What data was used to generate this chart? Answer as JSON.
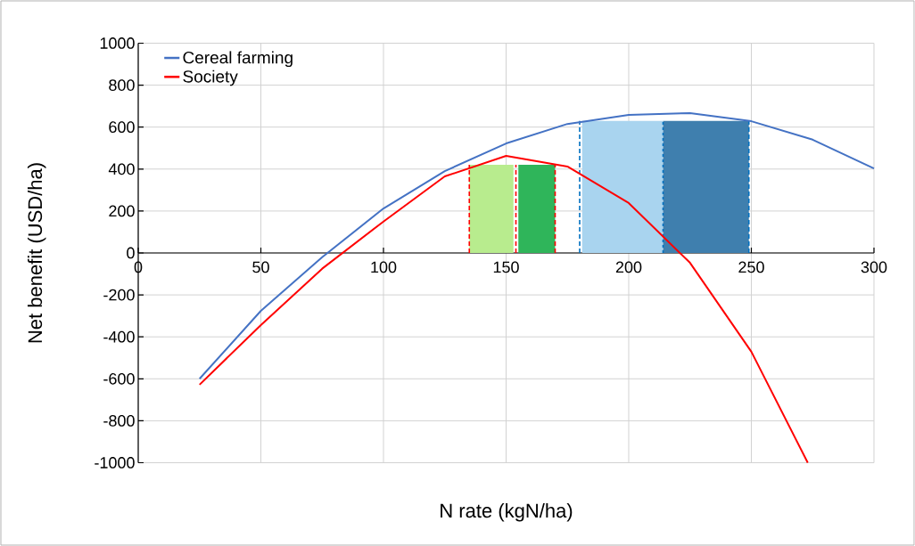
{
  "chart_data": {
    "type": "line",
    "xlabel": "N rate (kgN/ha)",
    "ylabel": "Net benefit (USD/ha)",
    "xlim": [
      0,
      300
    ],
    "ylim": [
      -1000,
      1000
    ],
    "xticks": [
      0,
      50,
      100,
      150,
      200,
      250,
      300
    ],
    "yticks": [
      -1000,
      -800,
      -600,
      -400,
      -200,
      0,
      200,
      400,
      600,
      800,
      1000
    ],
    "grid": true,
    "legend": "top left",
    "line_style": "solid",
    "series": [
      {
        "type": "area",
        "color": "#b8ec8e",
        "x": [
          135,
          153
        ],
        "values": [
          420,
          420
        ]
      },
      {
        "type": "area",
        "color": "#2fb55a",
        "x": [
          155,
          170
        ],
        "values": [
          420,
          420
        ]
      },
      {
        "type": "area",
        "color": "#a9d4ef",
        "x": [
          181,
          214
        ],
        "values": [
          630,
          630
        ]
      },
      {
        "type": "area",
        "color": "#3f7fae",
        "x": [
          214,
          249
        ],
        "values": [
          630,
          630
        ]
      },
      {
        "type": "line",
        "color": "#ff0000",
        "line_style": "dashed",
        "x": [
          135,
          135
        ],
        "values": [
          0,
          420
        ]
      },
      {
        "type": "line",
        "color": "#ff0000",
        "line_style": "dashed",
        "x": [
          154,
          154
        ],
        "values": [
          0,
          420
        ]
      },
      {
        "type": "line",
        "color": "#ff0000",
        "line_style": "dashed",
        "x": [
          170,
          170
        ],
        "values": [
          0,
          420
        ]
      },
      {
        "type": "line",
        "color": "#0070c0",
        "line_style": "dashed",
        "x": [
          180,
          180
        ],
        "values": [
          0,
          630
        ]
      },
      {
        "type": "line",
        "color": "#0070c0",
        "line_style": "dotted",
        "x": [
          214,
          214
        ],
        "values": [
          0,
          630
        ]
      },
      {
        "type": "line",
        "color": "#0070c0",
        "line_style": "dashed",
        "x": [
          249,
          249
        ],
        "values": [
          0,
          630
        ]
      },
      {
        "name": "Cereal farming",
        "color": "#4472c4",
        "x": [
          25,
          50,
          75,
          100,
          125,
          150,
          175,
          200,
          225,
          250,
          275,
          300
        ],
        "values": [
          -600,
          -276,
          -20,
          212,
          390,
          522,
          615,
          658,
          667,
          628,
          540,
          403
        ]
      },
      {
        "name": "Society",
        "color": "#ff0000",
        "x": [
          25,
          50,
          75,
          100,
          125,
          150,
          175,
          200,
          225,
          250,
          273
        ],
        "values": [
          -628,
          -344,
          -75,
          150,
          365,
          463,
          412,
          238,
          -47,
          -471,
          -1000
        ]
      }
    ]
  }
}
